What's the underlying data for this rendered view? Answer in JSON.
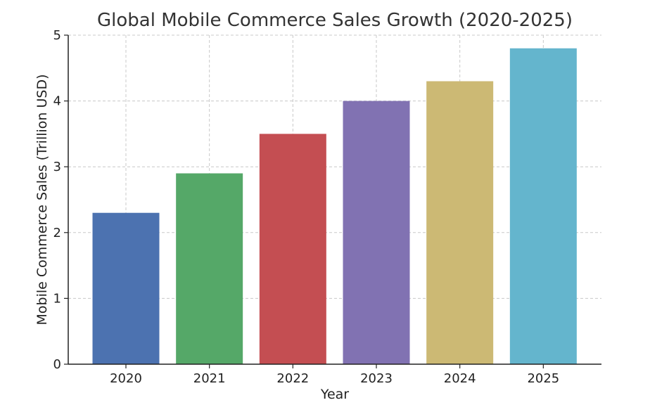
{
  "chart_data": {
    "type": "bar",
    "title": "Global Mobile Commerce Sales Growth (2020-2025)",
    "xlabel": "Year",
    "ylabel": "Mobile Commerce Sales (Trillion USD)",
    "categories": [
      "2020",
      "2021",
      "2022",
      "2023",
      "2024",
      "2025"
    ],
    "values": [
      2.3,
      2.9,
      3.5,
      4.0,
      4.3,
      4.8
    ],
    "colors": [
      "#4c72b0",
      "#55a868",
      "#c44e52",
      "#8172b2",
      "#ccb974",
      "#64b5cd"
    ],
    "ylim": [
      0,
      5
    ],
    "yticks": [
      "0",
      "1",
      "2",
      "3",
      "4",
      "5"
    ],
    "grid": true,
    "grid_style": "dashed"
  }
}
